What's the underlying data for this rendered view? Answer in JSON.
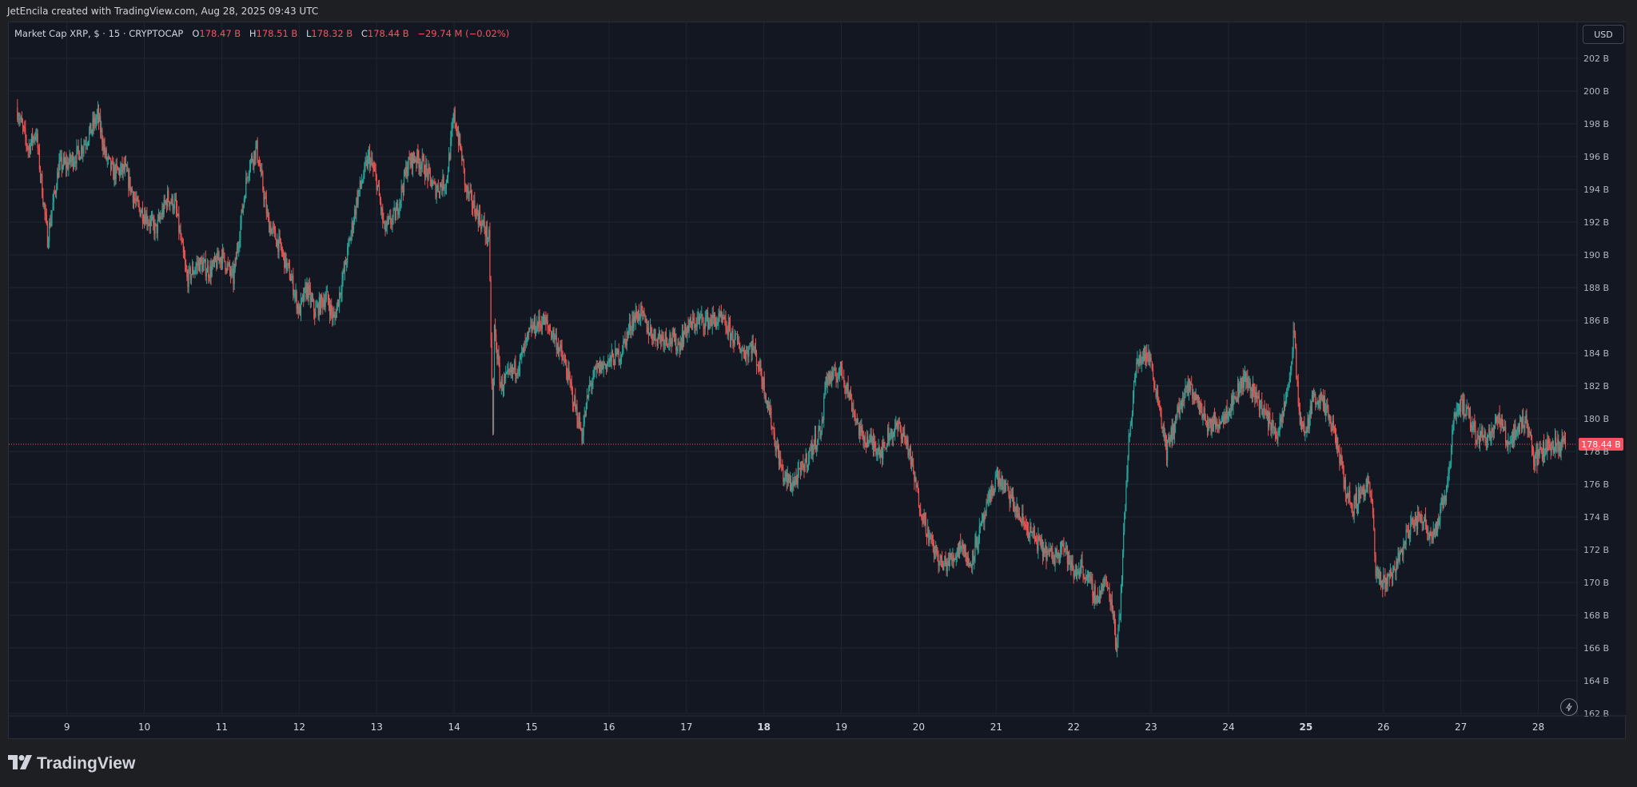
{
  "header": {
    "credit": "JetEncila created with TradingView.com, Aug 28, 2025 09:43 UTC"
  },
  "legend": {
    "symbol": "Market Cap XRP, $ · 15 · CRYPTOCAP",
    "open_label": "O",
    "open": "178.47 B",
    "high_label": "H",
    "high": "178.51 B",
    "low_label": "L",
    "low": "178.32 B",
    "close_label": "C",
    "close": "178.44 B",
    "change": "−29.74 M (−0.02%)"
  },
  "currency_button": "USD",
  "footer": {
    "brand": "TradingView"
  },
  "icons": {
    "bolt": "lightning-icon",
    "logo": "tradingview-logo-icon"
  },
  "colors": {
    "background": "#131722",
    "grid": "#1f2430",
    "up": "#26a69a",
    "down": "#ef5350",
    "price_label": "#f7525f"
  },
  "chart_data": {
    "type": "candlestick",
    "title": "Market Cap XRP, $ · 15 · CRYPTOCAP",
    "interval": "15",
    "currency": "USD",
    "ylim": [
      162,
      203
    ],
    "y_ticks": [
      "202 B",
      "200 B",
      "198 B",
      "196 B",
      "194 B",
      "192 B",
      "190 B",
      "188 B",
      "186 B",
      "184 B",
      "182 B",
      "180 B",
      "178 B",
      "176 B",
      "174 B",
      "172 B",
      "170 B",
      "168 B",
      "166 B",
      "164 B",
      "162 B"
    ],
    "y_tick_values": [
      202,
      200,
      198,
      196,
      194,
      192,
      190,
      188,
      186,
      184,
      182,
      180,
      178,
      176,
      174,
      172,
      170,
      168,
      166,
      164,
      162
    ],
    "x_ticks": [
      "9",
      "10",
      "11",
      "12",
      "13",
      "14",
      "15",
      "16",
      "17",
      "18",
      "19",
      "20",
      "21",
      "22",
      "23",
      "24",
      "25",
      "26",
      "27",
      "28"
    ],
    "x_tick_values": [
      9,
      10,
      11,
      12,
      13,
      14,
      15,
      16,
      17,
      18,
      19,
      20,
      21,
      22,
      23,
      24,
      25,
      26,
      27,
      28
    ],
    "x_bold_ticks": [
      "18",
      "25"
    ],
    "xlim": [
      8.25,
      28.5
    ],
    "last_price": 178.44,
    "last_price_label": "178.44 B",
    "series": [
      {
        "x": [
          8.35,
          8.5,
          8.6,
          8.75,
          8.9,
          9.0,
          9.15,
          9.3,
          9.4,
          9.5,
          9.6,
          9.75,
          9.9,
          10.0,
          10.15,
          10.3,
          10.4,
          10.55,
          10.7,
          10.85,
          11.0,
          11.15,
          11.3,
          11.35,
          11.45,
          11.6,
          11.75,
          11.9,
          12.0,
          12.1,
          12.2,
          12.35,
          12.45,
          12.6,
          12.75,
          12.9,
          13.0,
          13.1,
          13.25,
          13.4,
          13.5,
          13.6,
          13.75,
          13.9,
          14.0,
          14.1,
          14.15,
          14.3,
          14.45,
          14.5,
          14.52,
          14.6,
          14.7,
          14.85,
          15.0,
          15.15,
          15.3,
          15.45,
          15.6,
          15.65,
          15.75,
          15.85,
          16.0,
          16.15,
          16.3,
          16.4,
          16.5,
          16.6,
          16.75,
          16.9,
          17.0,
          17.15,
          17.3,
          17.45,
          17.6,
          17.75,
          17.85,
          17.95,
          18.05,
          18.15,
          18.25,
          18.35,
          18.45,
          18.6,
          18.75,
          18.8,
          18.9,
          19.0,
          19.1,
          19.25,
          19.4,
          19.55,
          19.6,
          19.75,
          19.85,
          20.0,
          20.15,
          20.3,
          20.45,
          20.55,
          20.65,
          20.75,
          20.85,
          21.0,
          21.15,
          21.3,
          21.45,
          21.6,
          21.75,
          21.85,
          22.0,
          22.1,
          22.2,
          22.3,
          22.4,
          22.45,
          22.52,
          22.55,
          22.6,
          22.7,
          22.8,
          22.9,
          23.0,
          23.05,
          23.1,
          23.2,
          23.35,
          23.5,
          23.6,
          23.75,
          23.9,
          24.05,
          24.2,
          24.35,
          24.5,
          24.65,
          24.75,
          24.8,
          24.85,
          24.9,
          25.0,
          25.1,
          25.2,
          25.3,
          25.4,
          25.5,
          25.6,
          25.7,
          25.8,
          25.85,
          25.9,
          26.0,
          26.1,
          26.2,
          26.35,
          26.5,
          26.6,
          26.7,
          26.8,
          26.85,
          26.9,
          27.0,
          27.1,
          27.2,
          27.35,
          27.5,
          27.6,
          27.75,
          27.85,
          27.95,
          28.05,
          28.15,
          28.25,
          28.35
        ],
        "y": [
          199.0,
          196.5,
          197.5,
          191.0,
          195.5,
          195.5,
          196.2,
          197.5,
          198.5,
          196.0,
          195.0,
          195.2,
          193.0,
          192.5,
          191.5,
          193.5,
          193.0,
          188.5,
          189.5,
          189.0,
          190.0,
          188.5,
          194.0,
          195.5,
          196.5,
          192.0,
          190.5,
          188.5,
          186.5,
          188.0,
          186.5,
          187.5,
          186.0,
          189.5,
          193.5,
          196.0,
          194.5,
          191.5,
          192.5,
          195.5,
          196.0,
          195.5,
          194.0,
          194.5,
          198.5,
          196.0,
          194.0,
          192.5,
          191.0,
          179.0,
          185.5,
          182.0,
          182.5,
          183.5,
          185.5,
          186.0,
          185.0,
          183.0,
          180.0,
          179.0,
          182.0,
          183.0,
          183.5,
          184.0,
          186.0,
          186.5,
          185.5,
          185.0,
          185.0,
          184.5,
          185.5,
          186.0,
          186.0,
          186.0,
          185.0,
          184.0,
          184.5,
          183.0,
          181.0,
          178.5,
          176.5,
          176.0,
          176.5,
          178.0,
          179.5,
          182.5,
          182.5,
          183.0,
          181.5,
          179.0,
          178.5,
          178.0,
          179.0,
          179.5,
          178.5,
          175.0,
          172.5,
          171.0,
          171.5,
          172.5,
          171.0,
          172.5,
          174.0,
          176.5,
          175.5,
          174.0,
          173.0,
          172.0,
          171.5,
          172.5,
          170.5,
          171.0,
          170.0,
          169.0,
          170.0,
          169.5,
          168.0,
          166.0,
          168.5,
          178.0,
          183.0,
          184.0,
          183.5,
          182.0,
          181.0,
          178.0,
          180.5,
          182.0,
          181.0,
          179.5,
          180.0,
          181.0,
          182.5,
          181.5,
          180.0,
          179.0,
          181.5,
          183.0,
          185.5,
          180.5,
          179.0,
          181.5,
          181.0,
          180.0,
          178.5,
          176.0,
          174.5,
          175.5,
          176.0,
          175.0,
          170.5,
          170.0,
          170.5,
          171.5,
          173.5,
          174.0,
          173.0,
          173.5,
          175.5,
          177.0,
          180.0,
          181.0,
          180.0,
          179.0,
          179.0,
          180.0,
          178.5,
          179.5,
          180.0,
          177.5,
          178.0,
          178.5,
          178.4,
          178.44
        ]
      }
    ]
  }
}
